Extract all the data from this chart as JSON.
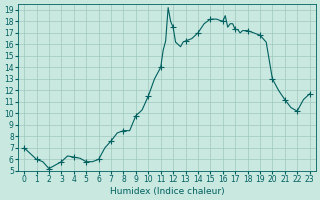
{
  "xlabel": "Humidex (Indice chaleur)",
  "ylabel": "",
  "background_color": "#c8e8e0",
  "grid_color": "#a0c8c0",
  "line_color": "#006060",
  "marker_color": "#006060",
  "xlim": [
    -0.5,
    23.5
  ],
  "ylim": [
    5,
    19.5
  ],
  "yticks": [
    5,
    6,
    7,
    8,
    9,
    10,
    11,
    12,
    13,
    14,
    15,
    16,
    17,
    18,
    19
  ],
  "xticks": [
    0,
    1,
    2,
    3,
    4,
    5,
    6,
    7,
    8,
    9,
    10,
    11,
    12,
    13,
    14,
    15,
    16,
    17,
    18,
    19,
    20,
    21,
    22,
    23
  ],
  "x": [
    0,
    0.5,
    1,
    1.5,
    2,
    2.5,
    3,
    3.5,
    4,
    4.5,
    5,
    5.5,
    6,
    6.5,
    7,
    7.5,
    8,
    8.5,
    9,
    9.5,
    10,
    10.5,
    11,
    11.2,
    11.4,
    11.6,
    11.8,
    12,
    12.2,
    12.4,
    12.6,
    12.8,
    13,
    13.5,
    14,
    14.5,
    15,
    15.5,
    16,
    16.2,
    16.4,
    16.6,
    16.8,
    17,
    17.2,
    17.4,
    17.6,
    17.8,
    18,
    18.5,
    19,
    19.5,
    20,
    20.5,
    21,
    21.5,
    22,
    22.5,
    23
  ],
  "y": [
    7.0,
    6.5,
    6.0,
    5.8,
    5.2,
    5.5,
    5.8,
    6.3,
    6.2,
    6.1,
    5.8,
    5.8,
    6.0,
    7.0,
    7.6,
    8.3,
    8.5,
    8.5,
    9.8,
    10.3,
    11.5,
    13.0,
    14.0,
    15.5,
    16.3,
    19.2,
    18.0,
    17.5,
    16.2,
    16.0,
    15.8,
    16.2,
    16.3,
    16.5,
    17.0,
    17.8,
    18.2,
    18.2,
    18.0,
    18.5,
    17.5,
    17.8,
    17.8,
    17.3,
    17.3,
    17.0,
    17.2,
    17.2,
    17.2,
    17.0,
    16.8,
    16.2,
    13.0,
    12.0,
    11.2,
    10.5,
    10.2,
    11.2,
    11.7
  ],
  "marker_x": [
    0,
    1,
    2,
    3,
    4,
    5,
    6,
    7,
    8,
    9,
    10,
    11,
    12,
    13,
    14,
    15,
    16,
    17,
    18,
    19,
    20,
    21,
    22,
    23
  ],
  "marker_y": [
    7.0,
    6.0,
    5.2,
    5.8,
    6.2,
    5.8,
    6.0,
    7.6,
    8.5,
    9.8,
    11.5,
    14.0,
    17.5,
    16.3,
    17.0,
    18.2,
    18.0,
    17.3,
    17.2,
    16.8,
    13.0,
    11.2,
    10.2,
    11.7
  ]
}
